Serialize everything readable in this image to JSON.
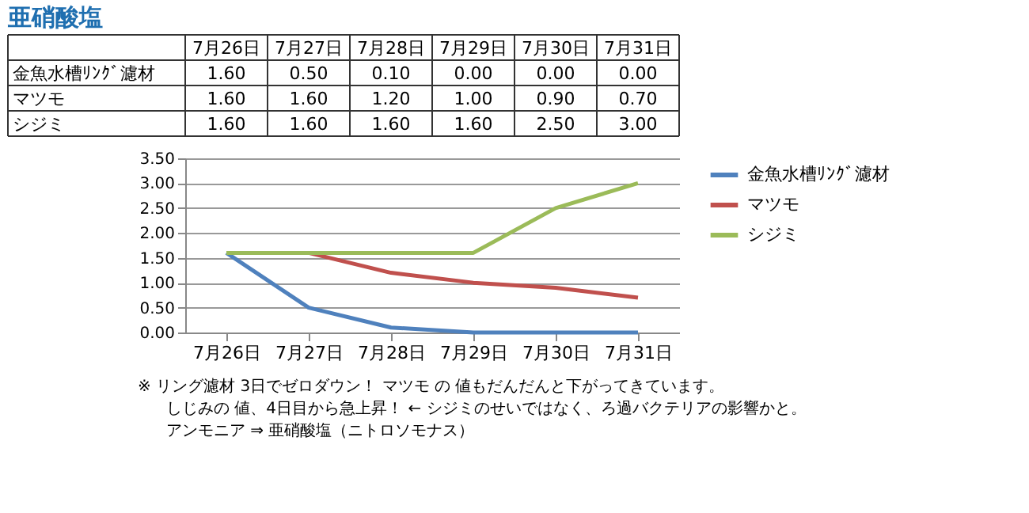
{
  "chart_data": {
    "type": "line",
    "title": "亜硝酸塩",
    "categories": [
      "7月26日",
      "7月27日",
      "7月28日",
      "7月29日",
      "7月30日",
      "7月31日"
    ],
    "series": [
      {
        "name": "金魚水槽ﾘﾝｸﾞ濾材",
        "color": "#4f81bd",
        "values": [
          1.6,
          0.5,
          0.1,
          0,
          0,
          0
        ],
        "value_labels": [
          "1.60",
          "0.50",
          "0.10",
          "0.00",
          "0.00",
          "0.00"
        ]
      },
      {
        "name": "マツモ",
        "color": "#c0504d",
        "values": [
          1.6,
          1.6,
          1.2,
          1.0,
          0.9,
          0.7
        ],
        "value_labels": [
          "1.60",
          "1.60",
          "1.20",
          "1.00",
          "0.90",
          "0.70"
        ]
      },
      {
        "name": "シジミ",
        "color": "#9bbb59",
        "values": [
          1.6,
          1.6,
          1.6,
          1.6,
          2.5,
          3.0
        ],
        "value_labels": [
          "1.60",
          "1.60",
          "1.60",
          "1.60",
          "2.50",
          "3.00"
        ]
      }
    ],
    "ylim": [
      0,
      3.5
    ],
    "yticks": [
      {
        "value": 0,
        "label": "0.00"
      },
      {
        "value": 0.5,
        "label": "0.50"
      },
      {
        "value": 1,
        "label": "1.00"
      },
      {
        "value": 1.5,
        "label": "1.50"
      },
      {
        "value": 2,
        "label": "2.00"
      },
      {
        "value": 2.5,
        "label": "2.50"
      },
      {
        "value": 3,
        "label": "3.00"
      },
      {
        "value": 3.5,
        "label": "3.50"
      }
    ],
    "grid": "y",
    "legend": "right",
    "marker": "none",
    "line_style": "solid",
    "annotations": [
      "※ リング濾材 3日でゼロダウン！ マツモ の 値もだんだんと下がってきています。",
      "しじみの 値、4日目から急上昇！ ← シジミのせいではなく、ろ過バクテリアの影響かと。",
      "アンモニア ⇒ 亜硝酸塩（ニトロソモナス）"
    ]
  }
}
